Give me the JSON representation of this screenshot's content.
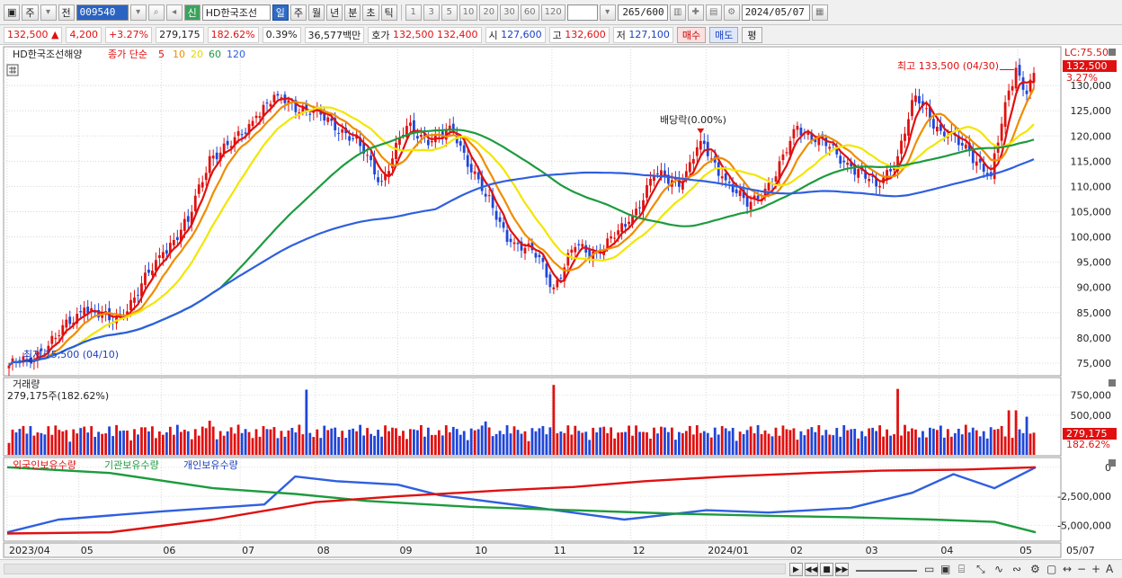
{
  "toolbar": {
    "chart_type": "주",
    "period_mode": "전",
    "stock_code": "009540",
    "credit_badge": "신",
    "stock_name": "HD한국조선",
    "tab_day": "일",
    "tab_week": "주",
    "tab_month": "월",
    "tab_year": "년",
    "tab_minute": "분",
    "tab_second": "초",
    "tab_tick": "틱",
    "intervals": [
      "1",
      "3",
      "5",
      "10",
      "20",
      "30",
      "60",
      "120"
    ],
    "count_display": "265",
    "count_total": "/600",
    "date": "2024/05/07"
  },
  "infobar": {
    "price": "132,500",
    "change_arrow": "▲",
    "change": "4,200",
    "change_pct": "+3.27%",
    "volume": "279,175",
    "volume_ratio": "182.62%",
    "turnover_rate": "0.39%",
    "trade_value": "36,577백만",
    "quote_label": "호가",
    "ask": "132,500",
    "bid": "132,400",
    "open_label": "시",
    "open": "127,600",
    "high_label": "고",
    "high": "132,600",
    "low_label": "저",
    "low": "127,100",
    "buy_btn": "매수",
    "sell_btn": "매도",
    "eval_btn": "평"
  },
  "panels": {
    "price_legend_name": "HD한국조선해양",
    "price_legend_ma": "종가 단순",
    "ma_labels": [
      "5",
      "10",
      "20",
      "60",
      "120"
    ],
    "volume_title": "거래량",
    "volume_value": "279,175주(182.62%)",
    "holdings_titles": [
      "외국인보유수량",
      "기관보유수량",
      "개인보유수량"
    ]
  },
  "annotations": {
    "high": "최고 133,500 (04/30)",
    "low": "최저 75,500 (04/10)",
    "dividend": "배당락(0.00%)",
    "lc_label": "LC:75.50",
    "last_price": "132,500",
    "last_pct": "3.27%",
    "vol_last": "279,175",
    "vol_last_pct": "182.62%"
  },
  "colors": {
    "up": "#e01010",
    "down": "#1f46d8",
    "ma5": "#e01010",
    "ma10": "#f08c00",
    "ma20": "#f2e600",
    "ma60": "#1d9b3e",
    "ma120": "#2f5fe0",
    "foreign": "#2f5fe0",
    "institution": "#1d9b3e",
    "individual": "#e01010"
  },
  "chart_data": [
    {
      "type": "candlestick",
      "title": "HD한국조선해양 종가 단순 이동평균 5 10 20 60 120",
      "ylim": [
        72500,
        137500
      ],
      "yticks": [
        75000,
        80000,
        85000,
        90000,
        95000,
        100000,
        105000,
        110000,
        115000,
        120000,
        125000,
        130000
      ],
      "ytick_labels": [
        "75,000",
        "80,000",
        "85,000",
        "90,000",
        "95,000",
        "100,000",
        "105,000",
        "110,000",
        "115,000",
        "120,000",
        "125,000",
        "130,000"
      ],
      "x_ticks": [
        "2023/04",
        "05",
        "06",
        "07",
        "08",
        "09",
        "10",
        "11",
        "12",
        "2024/01",
        "02",
        "03",
        "04",
        "05",
        "05/07"
      ],
      "anchors": [
        {
          "date": "2023/04/10",
          "close": 75500
        },
        {
          "date": "2023/04/20",
          "close": 80000
        },
        {
          "date": "2023/05/02",
          "close": 86000
        },
        {
          "date": "2023/05/12",
          "close": 83000
        },
        {
          "date": "2023/05/22",
          "close": 88000
        },
        {
          "date": "2023/06/01",
          "close": 97000
        },
        {
          "date": "2023/06/12",
          "close": 103000
        },
        {
          "date": "2023/06/20",
          "close": 116000
        },
        {
          "date": "2023/06/28",
          "close": 118000
        },
        {
          "date": "2023/07/07",
          "close": 124000
        },
        {
          "date": "2023/07/17",
          "close": 128000
        },
        {
          "date": "2023/07/27",
          "close": 125000
        },
        {
          "date": "2023/08/07",
          "close": 123000
        },
        {
          "date": "2023/08/17",
          "close": 118000
        },
        {
          "date": "2023/08/25",
          "close": 111000
        },
        {
          "date": "2023/09/05",
          "close": 122000
        },
        {
          "date": "2023/09/14",
          "close": 119000
        },
        {
          "date": "2023/09/22",
          "close": 121000
        },
        {
          "date": "2023/10/05",
          "close": 108000
        },
        {
          "date": "2023/10/16",
          "close": 99000
        },
        {
          "date": "2023/10/26",
          "close": 96000
        },
        {
          "date": "2023/11/01",
          "close": 90000
        },
        {
          "date": "2023/11/09",
          "close": 98000
        },
        {
          "date": "2023/11/20",
          "close": 97000
        },
        {
          "date": "2023/11/30",
          "close": 103000
        },
        {
          "date": "2023/12/11",
          "close": 112000
        },
        {
          "date": "2023/12/21",
          "close": 111000
        },
        {
          "date": "2023/12/28",
          "close": 119000
        },
        {
          "date": "2024/01/05",
          "close": 112000
        },
        {
          "date": "2024/01/16",
          "close": 106000
        },
        {
          "date": "2024/01/26",
          "close": 112000
        },
        {
          "date": "2024/02/05",
          "close": 122000
        },
        {
          "date": "2024/02/15",
          "close": 118000
        },
        {
          "date": "2024/02/26",
          "close": 114000
        },
        {
          "date": "2024/03/06",
          "close": 110000
        },
        {
          "date": "2024/03/14",
          "close": 116000
        },
        {
          "date": "2024/03/21",
          "close": 128000
        },
        {
          "date": "2024/04/01",
          "close": 121000
        },
        {
          "date": "2024/04/11",
          "close": 117000
        },
        {
          "date": "2024/04/19",
          "close": 112000
        },
        {
          "date": "2024/04/26",
          "close": 129000
        },
        {
          "date": "2024/04/30",
          "close": 133500
        },
        {
          "date": "2024/05/03",
          "close": 128300
        },
        {
          "date": "2024/05/07",
          "close": 132500
        }
      ],
      "ma_series": [
        {
          "name": "5",
          "period": 5
        },
        {
          "name": "10",
          "period": 10
        },
        {
          "name": "20",
          "period": 20
        },
        {
          "name": "60",
          "period": 60
        },
        {
          "name": "120",
          "period": 120
        }
      ],
      "high_marker": {
        "value": 133500,
        "date": "04/30"
      },
      "low_marker": {
        "value": 75500,
        "date": "04/10"
      }
    },
    {
      "type": "bar",
      "title": "거래량",
      "ylim": [
        0,
        950000
      ],
      "yticks": [
        500000,
        750000
      ],
      "ytick_labels": [
        "500,000",
        "750,000"
      ],
      "last_value": 279175,
      "spikes": [
        {
          "date": "2023/06/20",
          "value": 430000
        },
        {
          "date": "2023/07/27",
          "value": 820000
        },
        {
          "date": "2023/10/05",
          "value": 420000
        },
        {
          "date": "2023/11/01",
          "value": 880000
        },
        {
          "date": "2024/03/14",
          "value": 830000
        },
        {
          "date": "2024/04/26",
          "value": 560000
        },
        {
          "date": "2024/04/30",
          "value": 560000
        },
        {
          "date": "2024/05/03",
          "value": 480000
        }
      ]
    },
    {
      "type": "line",
      "title": "외국인보유수량 기관보유수량 개인보유수량",
      "ylim": [
        -6200000,
        600000
      ],
      "yticks": [
        0,
        -2500000,
        -5000000
      ],
      "ytick_labels": [
        "0",
        "-2,500,000",
        "-5,000,000"
      ],
      "series": [
        {
          "name": "외국인보유수량",
          "points": [
            [
              0,
              -5600000
            ],
            [
              0.05,
              -4500000
            ],
            [
              0.15,
              -3800000
            ],
            [
              0.25,
              -3200000
            ],
            [
              0.28,
              -800000
            ],
            [
              0.32,
              -1200000
            ],
            [
              0.38,
              -1500000
            ],
            [
              0.42,
              -2400000
            ],
            [
              0.5,
              -3300000
            ],
            [
              0.6,
              -4500000
            ],
            [
              0.68,
              -3700000
            ],
            [
              0.74,
              -3900000
            ],
            [
              0.82,
              -3500000
            ],
            [
              0.88,
              -2200000
            ],
            [
              0.92,
              -600000
            ],
            [
              0.96,
              -1800000
            ],
            [
              1.0,
              0
            ]
          ]
        },
        {
          "name": "기관보유수량",
          "points": [
            [
              0,
              0
            ],
            [
              0.1,
              -500000
            ],
            [
              0.2,
              -1800000
            ],
            [
              0.28,
              -2300000
            ],
            [
              0.35,
              -2900000
            ],
            [
              0.45,
              -3400000
            ],
            [
              0.55,
              -3700000
            ],
            [
              0.65,
              -4000000
            ],
            [
              0.75,
              -4200000
            ],
            [
              0.82,
              -4300000
            ],
            [
              0.9,
              -4500000
            ],
            [
              0.96,
              -4700000
            ],
            [
              1.0,
              -5600000
            ]
          ]
        },
        {
          "name": "개인보유수량",
          "points": [
            [
              0,
              -5700000
            ],
            [
              0.1,
              -5600000
            ],
            [
              0.2,
              -4500000
            ],
            [
              0.3,
              -3000000
            ],
            [
              0.38,
              -2500000
            ],
            [
              0.48,
              -2000000
            ],
            [
              0.55,
              -1700000
            ],
            [
              0.62,
              -1200000
            ],
            [
              0.7,
              -800000
            ],
            [
              0.78,
              -500000
            ],
            [
              0.85,
              -300000
            ],
            [
              0.93,
              -200000
            ],
            [
              1.0,
              0
            ]
          ]
        }
      ]
    }
  ]
}
